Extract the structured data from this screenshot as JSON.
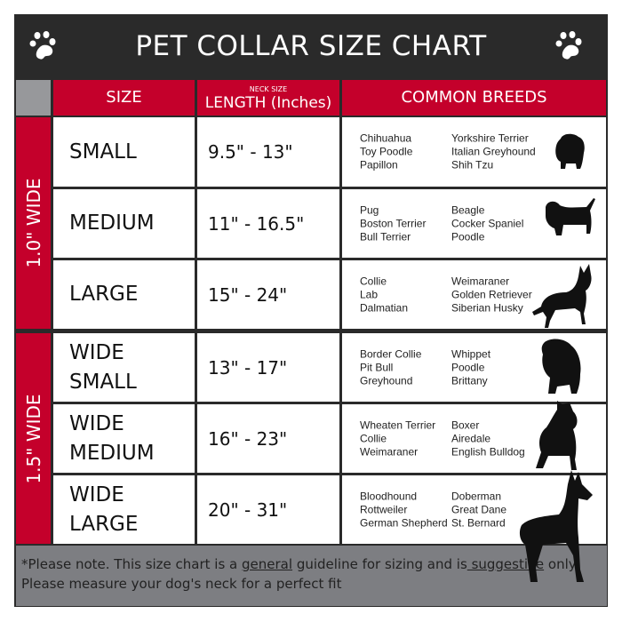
{
  "title": "PET COLLAR SIZE CHART",
  "headers": {
    "size": "SIZE",
    "length_small": "NECK SIZE",
    "length": "LENGTH (Inches)",
    "breeds": "COMMON BREEDS"
  },
  "groups": [
    {
      "label": "1.0\" WIDE"
    },
    {
      "label": "1.5\" WIDE"
    }
  ],
  "rows": [
    {
      "size": "SMALL",
      "length": "9.5\" - 13\"",
      "breeds_a": [
        "Chihuahua",
        "Toy Poodle",
        "Papillon"
      ],
      "breeds_b": [
        "Yorkshire Terrier",
        "Italian Greyhound",
        "Shih Tzu"
      ],
      "icon": "small-dog-silhouette-icon"
    },
    {
      "size": "MEDIUM",
      "length": "11\" - 16.5\"",
      "breeds_a": [
        "Pug",
        "Boston Terrier",
        "Bull Terrier"
      ],
      "breeds_b": [
        "Beagle",
        "Cocker Spaniel",
        "Poodle"
      ],
      "icon": "dachshund-silhouette-icon"
    },
    {
      "size": "LARGE",
      "length": "15\" - 24\"",
      "breeds_a": [
        "Collie",
        "Lab",
        "Dalmatian"
      ],
      "breeds_b": [
        "Weimaraner",
        "Golden Retriever",
        "Siberian Husky"
      ],
      "icon": "large-dog-silhouette-icon"
    },
    {
      "size": "WIDE SMALL",
      "size_lines": [
        "WIDE",
        "SMALL"
      ],
      "length": "13\" - 17\"",
      "breeds_a": [
        "Border Collie",
        "Pit Bull",
        "Greyhound"
      ],
      "breeds_b": [
        "Whippet",
        "Poodle",
        "Brittany"
      ],
      "icon": "bulldog-silhouette-icon"
    },
    {
      "size": "WIDE MEDIUM",
      "size_lines": [
        "WIDE",
        "MEDIUM"
      ],
      "length": "16\" - 23\"",
      "breeds_a": [
        "Wheaten Terrier",
        "Collie",
        "Weimaraner"
      ],
      "breeds_b": [
        "Boxer",
        "Airedale",
        "English Bulldog"
      ],
      "icon": "pitbull-silhouette-icon"
    },
    {
      "size": "WIDE LARGE",
      "size_lines": [
        "WIDE",
        "LARGE"
      ],
      "length": "20\" - 31\"",
      "breeds_a": [
        "Bloodhound",
        "Rottweiler",
        "German Shepherd"
      ],
      "breeds_b": [
        "Doberman",
        "Great Dane",
        "St. Bernard"
      ],
      "icon": "doberman-silhouette-icon"
    }
  ],
  "footer": {
    "p1": "*Please note. This size chart is a ",
    "u1": "general",
    "p2": " guideline for sizing and is",
    "u2": " suggestive",
    "p3": " only.",
    "line2": "Please measure your dog's neck for a perfect fit"
  },
  "colors": {
    "dark": "#2a2a2a",
    "red": "#c4002b",
    "gray": "#7d7e82"
  }
}
